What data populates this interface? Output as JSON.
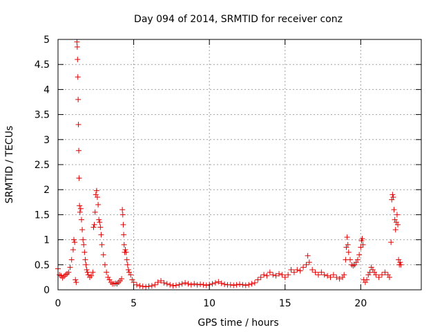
{
  "chart_data": {
    "type": "scatter",
    "title": "Day 094 of 2014, SRMTID for receiver conz",
    "xlabel": "GPS time / hours",
    "ylabel": "SRMTID / TECUs",
    "xlim": [
      0,
      24
    ],
    "ylim": [
      0,
      5
    ],
    "xticks": [
      0,
      5,
      10,
      15,
      20
    ],
    "yticks": [
      0,
      0.5,
      1,
      1.5,
      2,
      2.5,
      3,
      3.5,
      4,
      4.5,
      5
    ],
    "xtick_labels": [
      "0",
      "5",
      "10",
      "15",
      "20"
    ],
    "ytick_labels": [
      "0",
      "0.5",
      "1",
      "1.5",
      "2",
      "2.5",
      "3",
      "3.5",
      "4",
      "4.5",
      "5"
    ],
    "grid": true,
    "marker": "+",
    "marker_color": "#e00000",
    "series": [
      {
        "name": "SRMTID",
        "points": [
          [
            0.0,
            0.42
          ],
          [
            0.1,
            0.3
          ],
          [
            0.2,
            0.28
          ],
          [
            0.3,
            0.24
          ],
          [
            0.4,
            0.27
          ],
          [
            0.5,
            0.3
          ],
          [
            0.6,
            0.32
          ],
          [
            0.7,
            0.35
          ],
          [
            0.8,
            0.45
          ],
          [
            0.9,
            0.6
          ],
          [
            1.0,
            0.8
          ],
          [
            1.05,
            1.0
          ],
          [
            1.1,
            0.95
          ],
          [
            1.15,
            0.2
          ],
          [
            1.2,
            0.15
          ],
          [
            1.25,
            4.95
          ],
          [
            1.27,
            4.85
          ],
          [
            1.29,
            4.6
          ],
          [
            1.31,
            4.25
          ],
          [
            1.33,
            3.8
          ],
          [
            1.35,
            3.3
          ],
          [
            1.37,
            2.78
          ],
          [
            1.39,
            2.23
          ],
          [
            1.42,
            1.68
          ],
          [
            1.45,
            1.55
          ],
          [
            1.5,
            1.62
          ],
          [
            1.55,
            1.4
          ],
          [
            1.6,
            1.2
          ],
          [
            1.65,
            1.0
          ],
          [
            1.7,
            0.9
          ],
          [
            1.75,
            0.75
          ],
          [
            1.8,
            0.6
          ],
          [
            1.85,
            0.5
          ],
          [
            1.9,
            0.4
          ],
          [
            1.95,
            0.35
          ],
          [
            2.0,
            0.3
          ],
          [
            2.1,
            0.25
          ],
          [
            2.2,
            0.28
          ],
          [
            2.3,
            0.35
          ],
          [
            2.35,
            1.25
          ],
          [
            2.4,
            1.3
          ],
          [
            2.45,
            1.55
          ],
          [
            2.5,
            1.9
          ],
          [
            2.55,
            1.98
          ],
          [
            2.6,
            1.85
          ],
          [
            2.65,
            1.7
          ],
          [
            2.7,
            1.4
          ],
          [
            2.75,
            1.35
          ],
          [
            2.8,
            1.25
          ],
          [
            2.85,
            1.1
          ],
          [
            2.9,
            0.9
          ],
          [
            3.0,
            0.7
          ],
          [
            3.1,
            0.5
          ],
          [
            3.2,
            0.35
          ],
          [
            3.3,
            0.25
          ],
          [
            3.4,
            0.2
          ],
          [
            3.5,
            0.15
          ],
          [
            3.6,
            0.12
          ],
          [
            3.7,
            0.12
          ],
          [
            3.8,
            0.13
          ],
          [
            3.9,
            0.12
          ],
          [
            4.0,
            0.15
          ],
          [
            4.1,
            0.18
          ],
          [
            4.2,
            0.22
          ],
          [
            4.25,
            1.6
          ],
          [
            4.28,
            1.5
          ],
          [
            4.31,
            1.3
          ],
          [
            4.34,
            1.1
          ],
          [
            4.37,
            0.9
          ],
          [
            4.4,
            0.75
          ],
          [
            4.45,
            0.8
          ],
          [
            4.5,
            0.75
          ],
          [
            4.55,
            0.6
          ],
          [
            4.6,
            0.5
          ],
          [
            4.65,
            0.4
          ],
          [
            4.7,
            0.35
          ],
          [
            4.8,
            0.3
          ],
          [
            4.9,
            0.2
          ],
          [
            5.0,
            0.15
          ],
          [
            5.2,
            0.1
          ],
          [
            5.4,
            0.08
          ],
          [
            5.6,
            0.07
          ],
          [
            5.8,
            0.06
          ],
          [
            6.0,
            0.07
          ],
          [
            6.2,
            0.08
          ],
          [
            6.4,
            0.1
          ],
          [
            6.6,
            0.15
          ],
          [
            6.8,
            0.18
          ],
          [
            7.0,
            0.14
          ],
          [
            7.2,
            0.12
          ],
          [
            7.4,
            0.1
          ],
          [
            7.6,
            0.08
          ],
          [
            7.8,
            0.09
          ],
          [
            8.0,
            0.1
          ],
          [
            8.2,
            0.12
          ],
          [
            8.4,
            0.14
          ],
          [
            8.6,
            0.12
          ],
          [
            8.8,
            0.1
          ],
          [
            9.0,
            0.12
          ],
          [
            9.2,
            0.1
          ],
          [
            9.4,
            0.11
          ],
          [
            9.6,
            0.1
          ],
          [
            9.8,
            0.09
          ],
          [
            10.0,
            0.1
          ],
          [
            10.2,
            0.12
          ],
          [
            10.4,
            0.14
          ],
          [
            10.6,
            0.16
          ],
          [
            10.8,
            0.13
          ],
          [
            11.0,
            0.11
          ],
          [
            11.2,
            0.1
          ],
          [
            11.4,
            0.1
          ],
          [
            11.6,
            0.09
          ],
          [
            11.8,
            0.1
          ],
          [
            12.0,
            0.11
          ],
          [
            12.2,
            0.1
          ],
          [
            12.4,
            0.09
          ],
          [
            12.6,
            0.1
          ],
          [
            12.8,
            0.12
          ],
          [
            13.0,
            0.14
          ],
          [
            13.2,
            0.2
          ],
          [
            13.4,
            0.25
          ],
          [
            13.6,
            0.3
          ],
          [
            13.8,
            0.28
          ],
          [
            14.0,
            0.35
          ],
          [
            14.2,
            0.3
          ],
          [
            14.4,
            0.28
          ],
          [
            14.6,
            0.32
          ],
          [
            14.8,
            0.3
          ],
          [
            15.0,
            0.25
          ],
          [
            15.2,
            0.3
          ],
          [
            15.4,
            0.4
          ],
          [
            15.6,
            0.35
          ],
          [
            15.8,
            0.4
          ],
          [
            16.0,
            0.38
          ],
          [
            16.2,
            0.45
          ],
          [
            16.4,
            0.5
          ],
          [
            16.5,
            0.68
          ],
          [
            16.6,
            0.55
          ],
          [
            16.8,
            0.4
          ],
          [
            17.0,
            0.35
          ],
          [
            17.2,
            0.3
          ],
          [
            17.4,
            0.35
          ],
          [
            17.6,
            0.3
          ],
          [
            17.8,
            0.28
          ],
          [
            18.0,
            0.25
          ],
          [
            18.2,
            0.3
          ],
          [
            18.4,
            0.25
          ],
          [
            18.6,
            0.22
          ],
          [
            18.8,
            0.25
          ],
          [
            18.9,
            0.3
          ],
          [
            19.0,
            0.6
          ],
          [
            19.05,
            0.85
          ],
          [
            19.1,
            1.05
          ],
          [
            19.15,
            0.9
          ],
          [
            19.2,
            0.75
          ],
          [
            19.3,
            0.6
          ],
          [
            19.4,
            0.5
          ],
          [
            19.5,
            0.48
          ],
          [
            19.6,
            0.5
          ],
          [
            19.7,
            0.55
          ],
          [
            19.8,
            0.6
          ],
          [
            19.9,
            0.7
          ],
          [
            20.0,
            0.85
          ],
          [
            20.05,
            0.98
          ],
          [
            20.1,
            1.02
          ],
          [
            20.15,
            0.9
          ],
          [
            20.2,
            0.2
          ],
          [
            20.3,
            0.15
          ],
          [
            20.4,
            0.2
          ],
          [
            20.5,
            0.3
          ],
          [
            20.6,
            0.35
          ],
          [
            20.7,
            0.45
          ],
          [
            20.8,
            0.4
          ],
          [
            20.9,
            0.35
          ],
          [
            21.0,
            0.3
          ],
          [
            21.2,
            0.25
          ],
          [
            21.4,
            0.3
          ],
          [
            21.6,
            0.35
          ],
          [
            21.8,
            0.3
          ],
          [
            21.9,
            0.25
          ],
          [
            22.0,
            0.95
          ],
          [
            22.05,
            1.8
          ],
          [
            22.1,
            1.9
          ],
          [
            22.15,
            1.85
          ],
          [
            22.2,
            1.6
          ],
          [
            22.25,
            1.4
          ],
          [
            22.3,
            1.2
          ],
          [
            22.35,
            1.35
          ],
          [
            22.4,
            1.5
          ],
          [
            22.45,
            1.3
          ],
          [
            22.5,
            0.6
          ],
          [
            22.55,
            0.5
          ],
          [
            22.6,
            0.55
          ],
          [
            22.65,
            0.5
          ]
        ]
      }
    ]
  }
}
